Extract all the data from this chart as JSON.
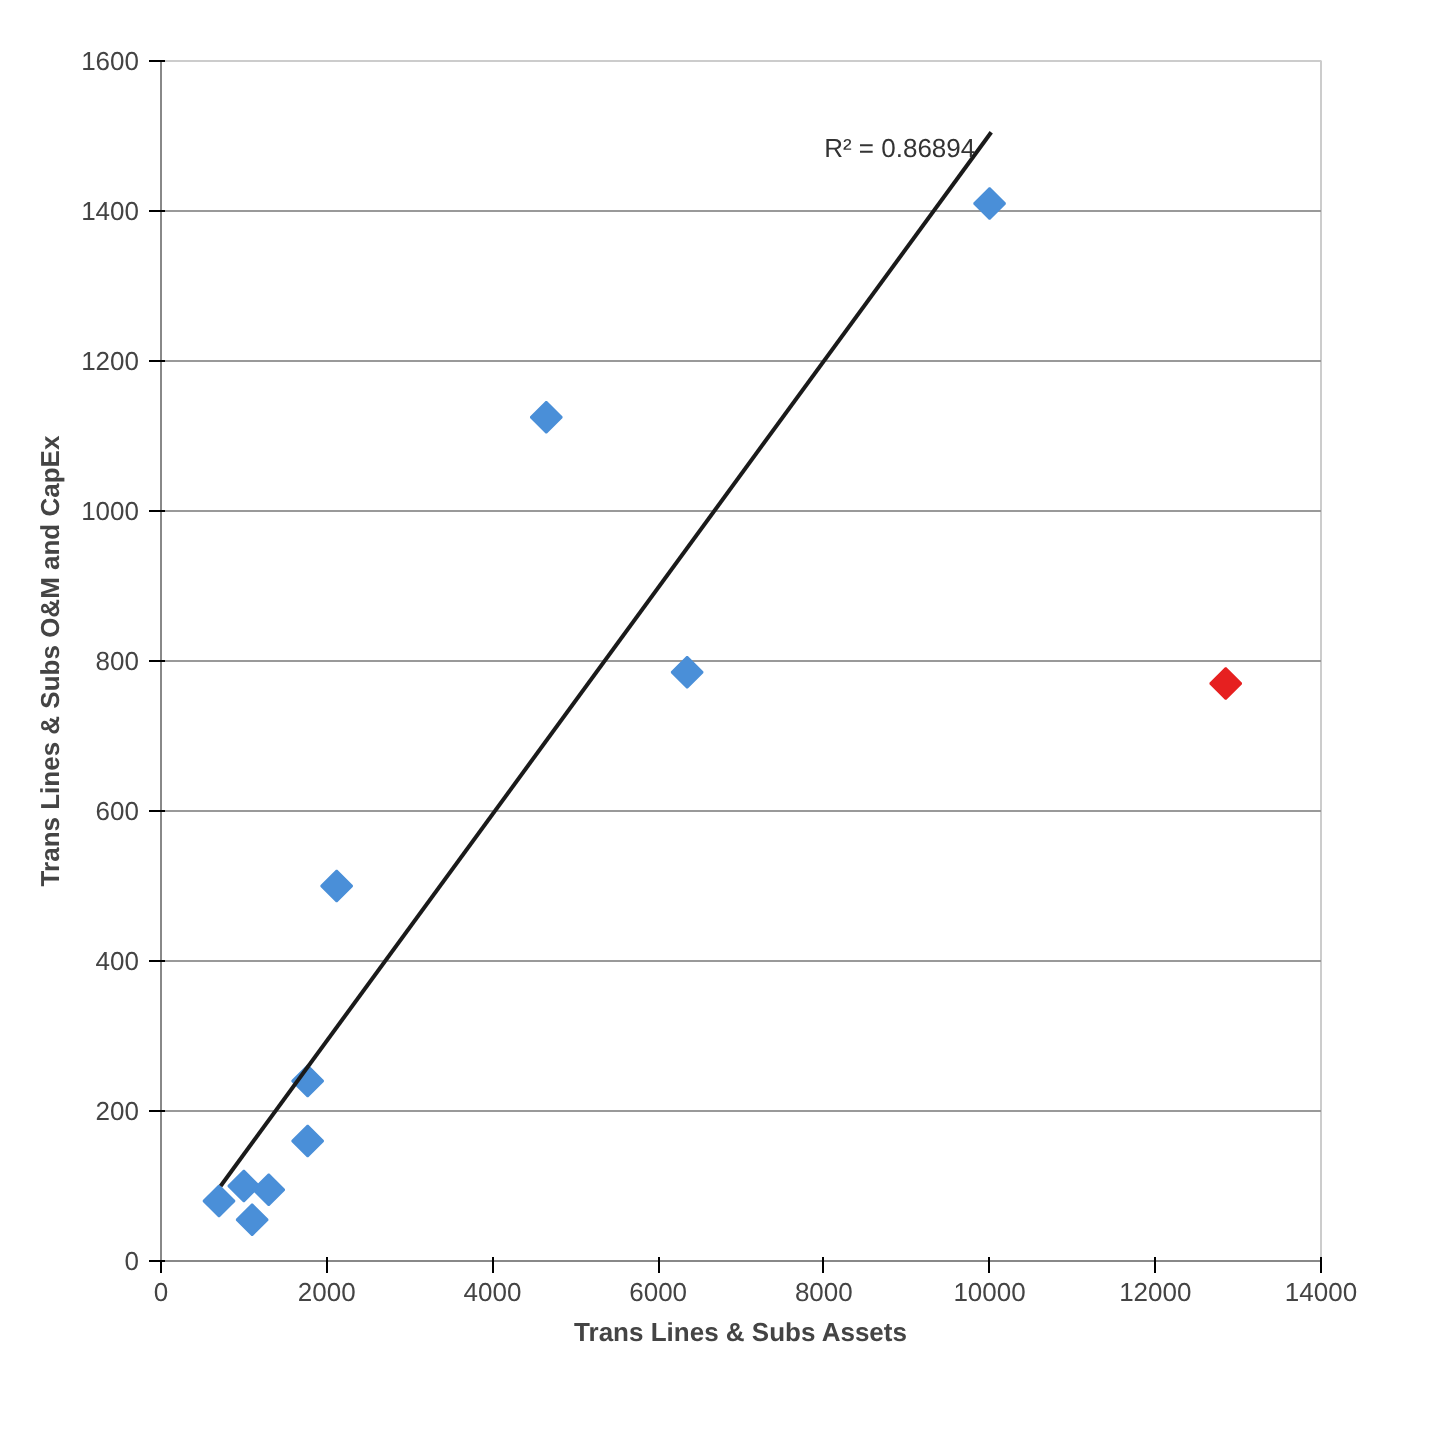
{
  "chart_data": {
    "type": "scatter",
    "xlabel": "Trans Lines & Subs Assets",
    "ylabel": "Trans Lines & Subs O&M and CapEx",
    "xlim": [
      0,
      14000
    ],
    "ylim": [
      0,
      1600
    ],
    "xticks": [
      0,
      2000,
      4000,
      6000,
      8000,
      10000,
      12000,
      14000
    ],
    "yticks": [
      0,
      200,
      400,
      600,
      800,
      1000,
      1200,
      1400,
      1600
    ],
    "grid": "y",
    "marker": "diamond",
    "series": [
      {
        "color": "#4a8fd8",
        "x": [
          700,
          1000,
          1100,
          1300,
          1770,
          1770,
          2120,
          4650,
          6350,
          10000
        ],
        "values": [
          80,
          100,
          55,
          95,
          160,
          240,
          500,
          1125,
          785,
          1410
        ]
      },
      {
        "color": "#e62020",
        "x": [
          12850
        ],
        "values": [
          770
        ]
      },
      {
        "type": "line",
        "color": "#1a1a1a",
        "line_style": "solid",
        "marker": "none",
        "x": [
          720,
          10020
        ],
        "values": [
          100,
          1505
        ]
      }
    ],
    "annotations": [
      "R² = 0.86894"
    ]
  }
}
